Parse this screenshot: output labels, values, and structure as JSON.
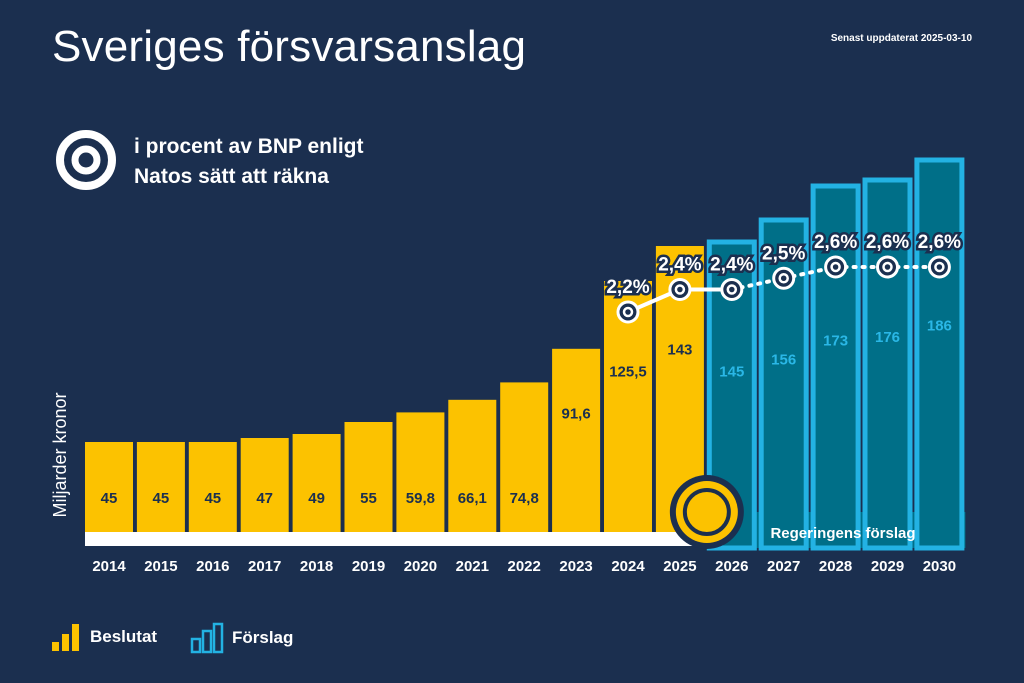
{
  "title": "Sveriges försvarsanslag",
  "updated": "Senast uppdaterat  2025-03-10",
  "subtitle_line1": "i procent av BNP enligt",
  "subtitle_line2": "Natos sätt att räkna",
  "ylabel": "Miljarder kronor",
  "forecast_label": "Regeringens förslag",
  "legend": {
    "decided": "Beslutat",
    "proposed": "Förslag"
  },
  "colors": {
    "background": "#1b2f4f",
    "decided": "#fcc200",
    "proposed_fill": "#006f88",
    "proposed_outline": "#23b2e3",
    "proposed_text": "#2ab7e6",
    "text": "#ffffff"
  },
  "chart_data": {
    "type": "bar",
    "categories": [
      "2014",
      "2015",
      "2016",
      "2017",
      "2018",
      "2019",
      "2020",
      "2021",
      "2022",
      "2023",
      "2024",
      "2025",
      "2026",
      "2027",
      "2028",
      "2029",
      "2030"
    ],
    "values": [
      45,
      45,
      45,
      47,
      49,
      55,
      59.8,
      66.1,
      74.8,
      91.6,
      125.5,
      143,
      145,
      156,
      173,
      176,
      186
    ],
    "value_labels": [
      "45",
      "45",
      "45",
      "47",
      "49",
      "55",
      "59,8",
      "66,1",
      "74,8",
      "91,6",
      "125,5",
      "143",
      "145",
      "156",
      "173",
      "176",
      "186"
    ],
    "status": [
      "decided",
      "decided",
      "decided",
      "decided",
      "decided",
      "decided",
      "decided",
      "decided",
      "decided",
      "decided",
      "decided",
      "decided",
      "proposed",
      "proposed",
      "proposed",
      "proposed",
      "proposed"
    ],
    "ylabel": "Miljarder kronor",
    "ylim": [
      0,
      200
    ],
    "gdp_share": {
      "categories": [
        "2024",
        "2025",
        "2026",
        "2027",
        "2028",
        "2029",
        "2030"
      ],
      "values": [
        2.2,
        2.4,
        2.4,
        2.5,
        2.6,
        2.6,
        2.6
      ],
      "labels": [
        "2,2%",
        "2,4%",
        "2,4%",
        "2,5%",
        "2,6%",
        "2,6%",
        "2,6%"
      ]
    }
  }
}
